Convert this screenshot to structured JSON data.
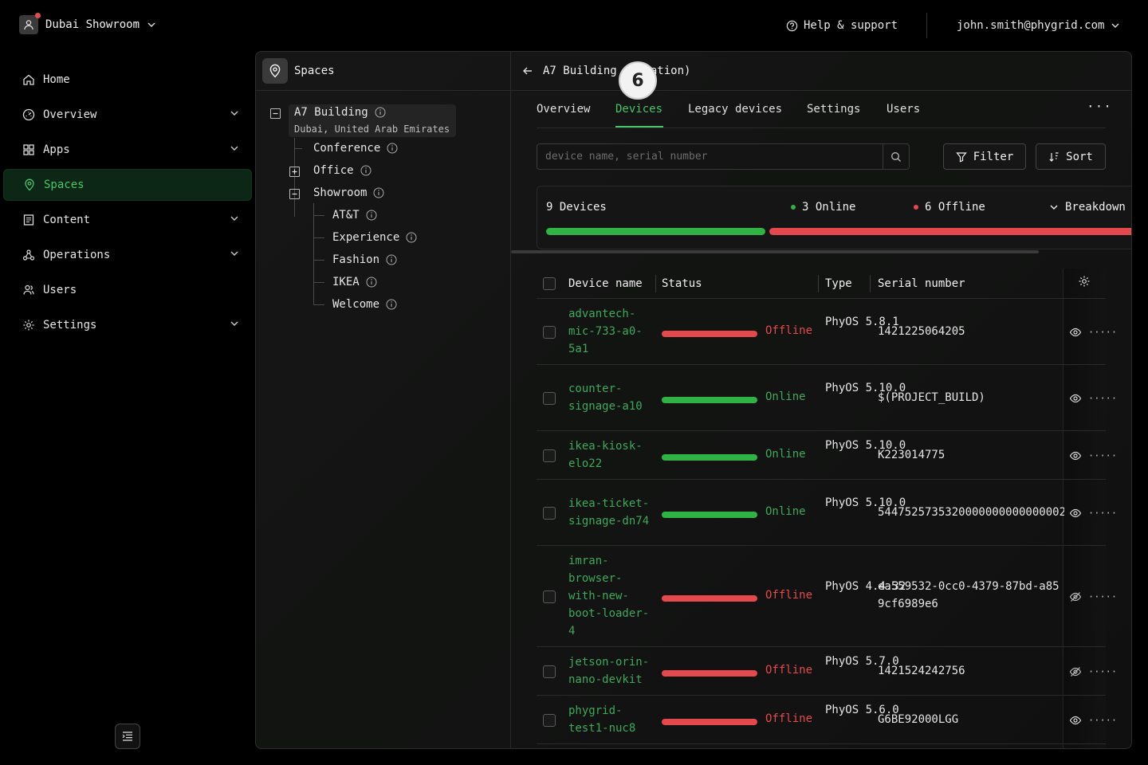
{
  "header": {
    "org_name": "Dubai Showroom",
    "help_label": "Help & support",
    "user_email": "john.smith@phygrid.com"
  },
  "sidebar": {
    "items": [
      {
        "label": "Home",
        "icon": "home-icon",
        "has_chevron": false
      },
      {
        "label": "Overview",
        "icon": "gauge-icon",
        "has_chevron": true
      },
      {
        "label": "Apps",
        "icon": "grid-icon",
        "has_chevron": true
      },
      {
        "label": "Spaces",
        "icon": "map-pin-icon",
        "has_chevron": false,
        "active": true
      },
      {
        "label": "Content",
        "icon": "document-icon",
        "has_chevron": true
      },
      {
        "label": "Operations",
        "icon": "network-icon",
        "has_chevron": true
      },
      {
        "label": "Users",
        "icon": "users-icon",
        "has_chevron": false
      },
      {
        "label": "Settings",
        "icon": "gear-icon",
        "has_chevron": true
      }
    ]
  },
  "tree": {
    "title": "Spaces",
    "root": {
      "label": "A7 Building",
      "subtitle": "Dubai, United Arab Emirates"
    },
    "level1": [
      "Conference",
      "Office",
      "Showroom"
    ],
    "showroom_children": [
      "AT&T",
      "Experience",
      "Fashion",
      "IKEA",
      "Welcome"
    ]
  },
  "content": {
    "breadcrumb": "A7 Building (Location)",
    "tabs": [
      "Overview",
      "Devices",
      "Legacy devices",
      "Settings",
      "Users"
    ],
    "active_tab": "Devices",
    "search_placeholder": "device name, serial number",
    "filter_label": "Filter",
    "sort_label": "Sort",
    "summary": {
      "total_label": "9 Devices",
      "online_label": "3 Online",
      "offline_label": "6 Offline",
      "breakdown_label": "Breakdown",
      "online_fraction": 0.333,
      "online_color": "#2fb344",
      "offline_color": "#e5484d"
    },
    "table": {
      "headers": [
        "Device name",
        "Status",
        "Type",
        "Serial number"
      ],
      "rows": [
        {
          "name": "advantech-mic-733-a0-5a1",
          "status": "Offline",
          "type": "PhyOS 5.8.1",
          "serial": "1421225064205",
          "visible": true
        },
        {
          "name": "counter-signage-a10",
          "status": "Online",
          "type": "PhyOS 5.10.0",
          "serial": "$(PROJECT_BUILD)",
          "visible": true
        },
        {
          "name": "ikea-kiosk-elo22",
          "status": "Online",
          "type": "PhyOS 5.10.0",
          "serial": "K223014775",
          "visible": true
        },
        {
          "name": "ikea-ticket-signage-dn74",
          "status": "Online",
          "type": "PhyOS 5.10.0",
          "serial": "5447525735320000000000000002",
          "visible": true
        },
        {
          "name": "imran-browser-with-new-boot-loader-4",
          "status": "Offline",
          "type": "PhyOS 4.4.32",
          "serial": "ea559532-0cc0-4379-87bd-a859cf6989e6",
          "visible": false
        },
        {
          "name": "jetson-orin-nano-devkit",
          "status": "Offline",
          "type": "PhyOS 5.7.0",
          "serial": "1421524242756",
          "visible": false
        },
        {
          "name": "phygrid-test1-nuc8",
          "status": "Offline",
          "type": "PhyOS 5.6.0",
          "serial": "G6BE92000LGG",
          "visible": true
        }
      ]
    }
  },
  "overlay_badge": "6"
}
